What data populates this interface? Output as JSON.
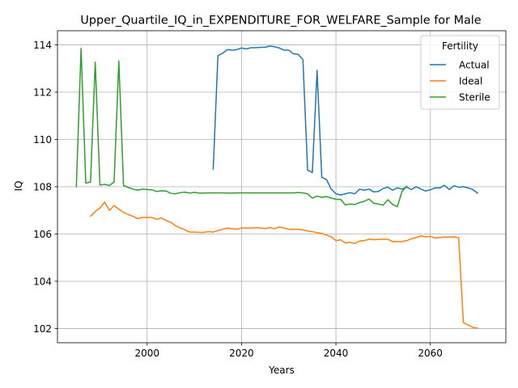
{
  "chart_data": {
    "type": "line",
    "title": "Upper_Quartile_IQ_in_EXPENDITURE_FOR_WELFARE_Sample for Male",
    "xlabel": "Years",
    "ylabel": "IQ",
    "xlim": [
      1981,
      2076
    ],
    "ylim": [
      101.4,
      114.6
    ],
    "xticks": [
      2000,
      2020,
      2040,
      2060
    ],
    "yticks": [
      102,
      104,
      106,
      108,
      110,
      112,
      114
    ],
    "grid": true,
    "legend": {
      "title": "Fertility",
      "placement": "top-right"
    },
    "series": [
      {
        "name": "Actual",
        "color": "#1f77b4",
        "x": [
          2014,
          2015,
          2016,
          2017,
          2018,
          2019,
          2020,
          2021,
          2022,
          2023,
          2024,
          2025,
          2026,
          2027,
          2028,
          2029,
          2030,
          2031,
          2032,
          2033,
          2034,
          2035,
          2036,
          2037,
          2038,
          2039,
          2040,
          2041,
          2042,
          2043,
          2044,
          2045,
          2046,
          2047,
          2048,
          2049,
          2050,
          2051,
          2052,
          2053,
          2054,
          2055,
          2056,
          2057,
          2058,
          2059,
          2060,
          2061,
          2062,
          2063,
          2064,
          2065,
          2066,
          2067,
          2068,
          2069,
          2070
        ],
        "y": [
          108.75,
          113.55,
          113.65,
          113.8,
          113.78,
          113.8,
          113.87,
          113.83,
          113.88,
          113.88,
          113.9,
          113.9,
          113.95,
          113.92,
          113.87,
          113.78,
          113.78,
          113.62,
          113.6,
          113.38,
          108.7,
          108.6,
          112.92,
          108.4,
          108.3,
          107.9,
          107.7,
          107.65,
          107.7,
          107.75,
          107.7,
          107.9,
          107.85,
          107.9,
          107.78,
          107.8,
          107.92,
          107.98,
          107.85,
          107.95,
          107.9,
          107.98,
          107.88,
          108.0,
          107.9,
          107.82,
          107.87,
          107.95,
          107.95,
          108.06,
          107.88,
          108.04,
          107.98,
          108.0,
          107.95,
          107.88,
          107.73
        ]
      },
      {
        "name": "Ideal",
        "color": "#ff7f0e",
        "x": [
          1988,
          1989,
          1990,
          1991,
          1992,
          1993,
          1994,
          1995,
          1996,
          1997,
          1998,
          1999,
          2000,
          2001,
          2002,
          2003,
          2004,
          2005,
          2006,
          2007,
          2008,
          2009,
          2010,
          2011,
          2012,
          2013,
          2014,
          2015,
          2016,
          2017,
          2018,
          2019,
          2020,
          2021,
          2022,
          2023,
          2024,
          2025,
          2026,
          2027,
          2028,
          2029,
          2030,
          2031,
          2032,
          2033,
          2034,
          2035,
          2036,
          2037,
          2038,
          2039,
          2040,
          2041,
          2042,
          2043,
          2044,
          2045,
          2046,
          2047,
          2048,
          2049,
          2050,
          2051,
          2052,
          2053,
          2054,
          2055,
          2056,
          2057,
          2058,
          2059,
          2060,
          2061,
          2062,
          2063,
          2064,
          2065,
          2066,
          2067,
          2068,
          2069,
          2070
        ],
        "y": [
          106.75,
          106.95,
          107.1,
          107.35,
          107.0,
          107.2,
          107.05,
          106.92,
          106.82,
          106.75,
          106.65,
          106.7,
          106.7,
          106.7,
          106.62,
          106.68,
          106.57,
          106.5,
          106.35,
          106.26,
          106.18,
          106.08,
          106.08,
          106.07,
          106.07,
          106.1,
          106.08,
          106.15,
          106.2,
          106.25,
          106.22,
          106.2,
          106.25,
          106.25,
          106.25,
          106.27,
          106.25,
          106.23,
          106.27,
          106.22,
          106.3,
          106.25,
          106.2,
          106.2,
          106.2,
          106.17,
          106.13,
          106.1,
          106.05,
          106.03,
          105.95,
          105.88,
          105.72,
          105.75,
          105.62,
          105.65,
          105.6,
          105.7,
          105.72,
          105.78,
          105.76,
          105.77,
          105.78,
          105.78,
          105.68,
          105.68,
          105.68,
          105.72,
          105.8,
          105.85,
          105.92,
          105.88,
          105.9,
          105.83,
          105.85,
          105.87,
          105.87,
          105.88,
          105.84,
          102.25,
          102.15,
          102.05,
          102.02
        ]
      },
      {
        "name": "Sterile",
        "color": "#2ca02c",
        "x": [
          1985,
          1986,
          1987,
          1988,
          1989,
          1990,
          1991,
          1992,
          1993,
          1994,
          1995,
          1996,
          1997,
          1998,
          1999,
          2000,
          2001,
          2002,
          2003,
          2004,
          2005,
          2006,
          2007,
          2008,
          2009,
          2010,
          2011,
          2012,
          2013,
          2014,
          2015,
          2016,
          2017,
          2018,
          2019,
          2020,
          2021,
          2022,
          2023,
          2024,
          2025,
          2026,
          2027,
          2028,
          2029,
          2030,
          2031,
          2032,
          2033,
          2034,
          2035,
          2036,
          2037,
          2038,
          2039,
          2040,
          2041,
          2042,
          2043,
          2044,
          2045,
          2046,
          2047,
          2048,
          2049,
          2050,
          2051,
          2052,
          2053,
          2054,
          2055
        ],
        "y": [
          108.0,
          113.85,
          108.15,
          108.2,
          113.27,
          108.07,
          108.1,
          108.05,
          108.2,
          113.32,
          108.05,
          107.97,
          107.9,
          107.85,
          107.9,
          107.88,
          107.87,
          107.8,
          107.83,
          107.82,
          107.72,
          107.7,
          107.75,
          107.77,
          107.73,
          107.76,
          107.73,
          107.73,
          107.74,
          107.74,
          107.74,
          107.74,
          107.73,
          107.73,
          107.74,
          107.74,
          107.74,
          107.74,
          107.74,
          107.74,
          107.74,
          107.74,
          107.74,
          107.74,
          107.74,
          107.74,
          107.74,
          107.75,
          107.74,
          107.7,
          107.52,
          107.6,
          107.55,
          107.58,
          107.52,
          107.47,
          107.46,
          107.23,
          107.27,
          107.25,
          107.33,
          107.38,
          107.48,
          107.3,
          107.27,
          107.22,
          107.45,
          107.25,
          107.15,
          107.8,
          108.02
        ]
      }
    ]
  }
}
